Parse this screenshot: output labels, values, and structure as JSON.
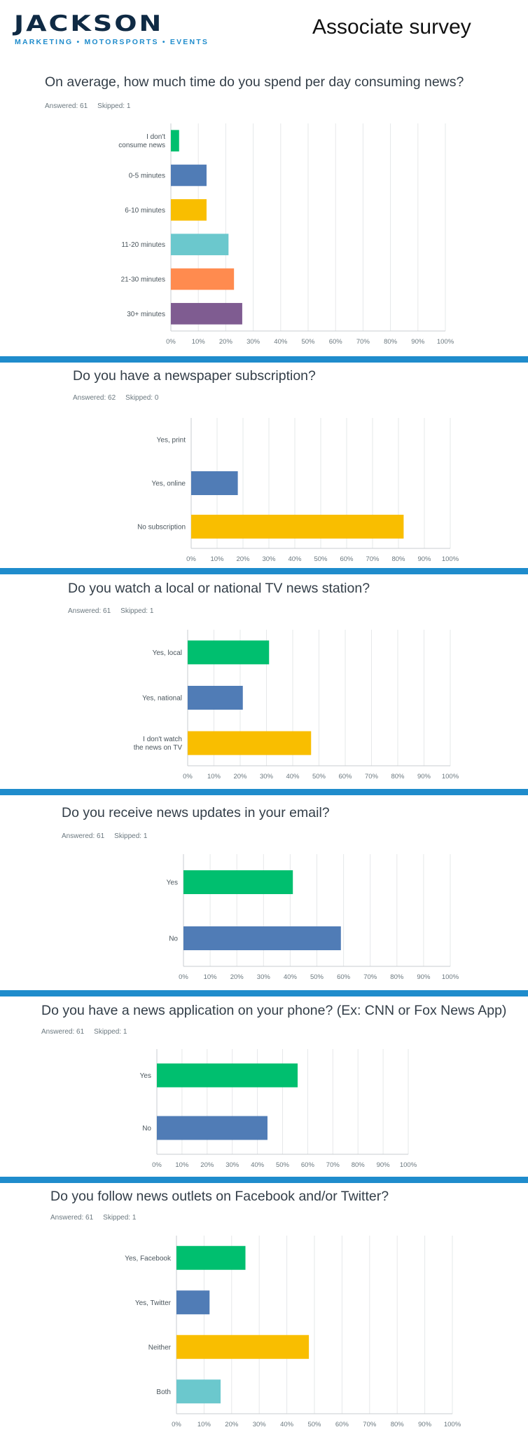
{
  "header": {
    "logo_word": "JACKSON",
    "logo_tagline": "MARKETING • MOTORSPORTS • EVENTS",
    "title": "Associate survey"
  },
  "colors": [
    "#00bf6f",
    "#507cb6",
    "#f9be00",
    "#6bc8cd",
    "#ff8b4f",
    "#7f5c91"
  ],
  "questions": [
    {
      "title": "On average, how much time do you spend per day consuming news?",
      "answered": "Answered: 61",
      "skipped": "Skipped: 1"
    },
    {
      "title": "Do you have a newspaper subscription?",
      "answered": "Answered: 62",
      "skipped": "Skipped: 0"
    },
    {
      "title": "Do you watch a local or national TV news station?",
      "answered": "Answered: 61",
      "skipped": "Skipped: 1"
    },
    {
      "title": "Do you receive news updates in your email?",
      "answered": "Answered: 61",
      "skipped": "Skipped: 1"
    },
    {
      "title": "Do you have a news application on your phone? (Ex: CNN or Fox News App)",
      "answered": "Answered: 61",
      "skipped": "Skipped: 1"
    },
    {
      "title": "Do you follow news outlets on Facebook and/or Twitter?",
      "answered": "Answered: 61",
      "skipped": "Skipped: 1"
    }
  ],
  "chart_data": [
    {
      "type": "bar",
      "orientation": "horizontal",
      "categories": [
        [
          "I don't",
          "consume news"
        ],
        [
          "0-5 minutes"
        ],
        [
          "6-10 minutes"
        ],
        [
          "11-20 minutes"
        ],
        [
          "21-30 minutes"
        ],
        [
          "30+ minutes"
        ]
      ],
      "values": [
        3,
        13,
        13,
        21,
        23,
        26
      ],
      "xlim": [
        0,
        100
      ],
      "ticks": [
        "0%",
        "10%",
        "20%",
        "30%",
        "40%",
        "50%",
        "60%",
        "70%",
        "80%",
        "90%",
        "100%"
      ],
      "grid": true
    },
    {
      "type": "bar",
      "orientation": "horizontal",
      "categories": [
        [
          "Yes, print"
        ],
        [
          "Yes, online"
        ],
        [
          "No subscription"
        ]
      ],
      "values": [
        0,
        18,
        82
      ],
      "xlim": [
        0,
        100
      ],
      "ticks": [
        "0%",
        "10%",
        "20%",
        "30%",
        "40%",
        "50%",
        "60%",
        "70%",
        "80%",
        "90%",
        "100%"
      ],
      "grid": true
    },
    {
      "type": "bar",
      "orientation": "horizontal",
      "categories": [
        [
          "Yes, local"
        ],
        [
          "Yes, national"
        ],
        [
          "I don't watch",
          "the news on TV"
        ]
      ],
      "values": [
        31,
        21,
        47
      ],
      "xlim": [
        0,
        100
      ],
      "ticks": [
        "0%",
        "10%",
        "20%",
        "30%",
        "40%",
        "50%",
        "60%",
        "70%",
        "80%",
        "90%",
        "100%"
      ],
      "grid": true
    },
    {
      "type": "bar",
      "orientation": "horizontal",
      "categories": [
        [
          "Yes"
        ],
        [
          "No"
        ]
      ],
      "values": [
        41,
        59
      ],
      "xlim": [
        0,
        100
      ],
      "ticks": [
        "0%",
        "10%",
        "20%",
        "30%",
        "40%",
        "50%",
        "60%",
        "70%",
        "80%",
        "90%",
        "100%"
      ],
      "grid": true
    },
    {
      "type": "bar",
      "orientation": "horizontal",
      "categories": [
        [
          "Yes"
        ],
        [
          "No"
        ]
      ],
      "values": [
        56,
        44
      ],
      "xlim": [
        0,
        100
      ],
      "ticks": [
        "0%",
        "10%",
        "20%",
        "30%",
        "40%",
        "50%",
        "60%",
        "70%",
        "80%",
        "90%",
        "100%"
      ],
      "grid": true
    },
    {
      "type": "bar",
      "orientation": "horizontal",
      "categories": [
        [
          "Yes, Facebook"
        ],
        [
          "Yes, Twitter"
        ],
        [
          "Neither"
        ],
        [
          "Both"
        ]
      ],
      "values": [
        25,
        12,
        48,
        16
      ],
      "xlim": [
        0,
        100
      ],
      "ticks": [
        "0%",
        "10%",
        "20%",
        "30%",
        "40%",
        "50%",
        "60%",
        "70%",
        "80%",
        "90%",
        "100%"
      ],
      "grid": true
    }
  ]
}
